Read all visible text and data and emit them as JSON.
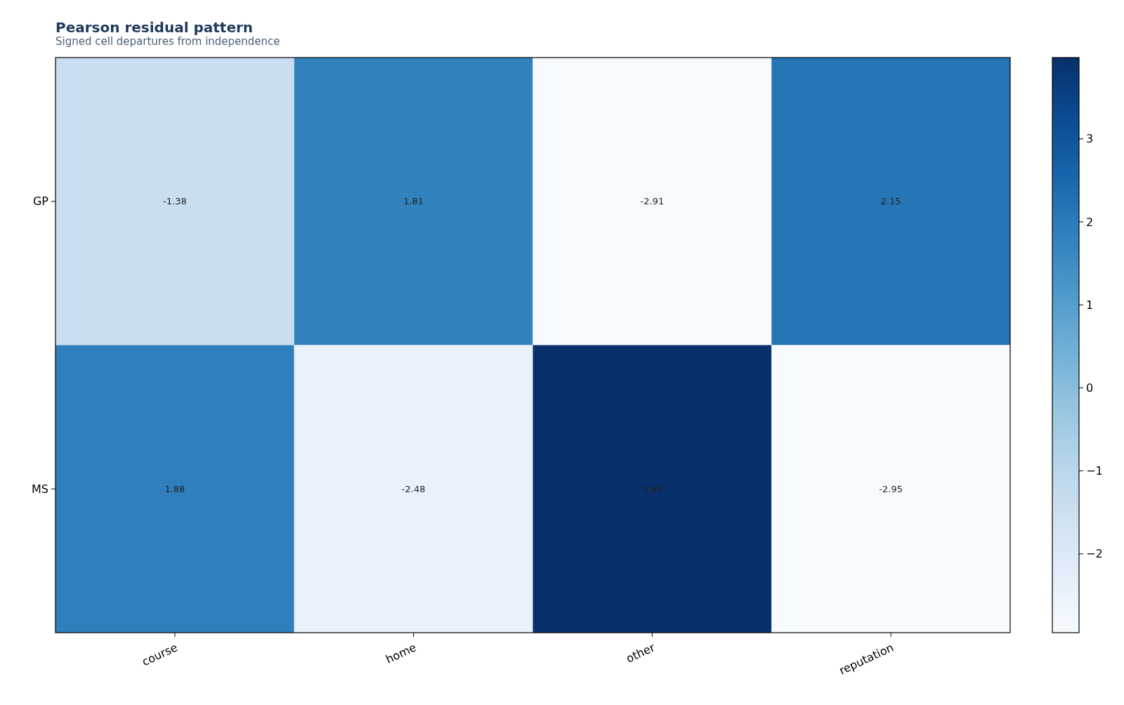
{
  "chart_data": {
    "type": "heatmap",
    "title": "Pearson residual pattern",
    "subtitle": "Signed cell departures from independence",
    "categories": [
      "course",
      "home",
      "other",
      "reputation"
    ],
    "y_categories": [
      "GP",
      "MS"
    ],
    "cells": [
      [
        -1.38,
        1.81,
        -2.91,
        2.15
      ],
      [
        1.88,
        -2.48,
        3.98,
        -2.95
      ]
    ],
    "data_labels": true,
    "clim": [
      -2.95,
      3.98
    ],
    "cticks": [
      {
        "value": -2,
        "label": "−2"
      },
      {
        "value": -1,
        "label": "−1"
      },
      0,
      1,
      2,
      3
    ]
  }
}
